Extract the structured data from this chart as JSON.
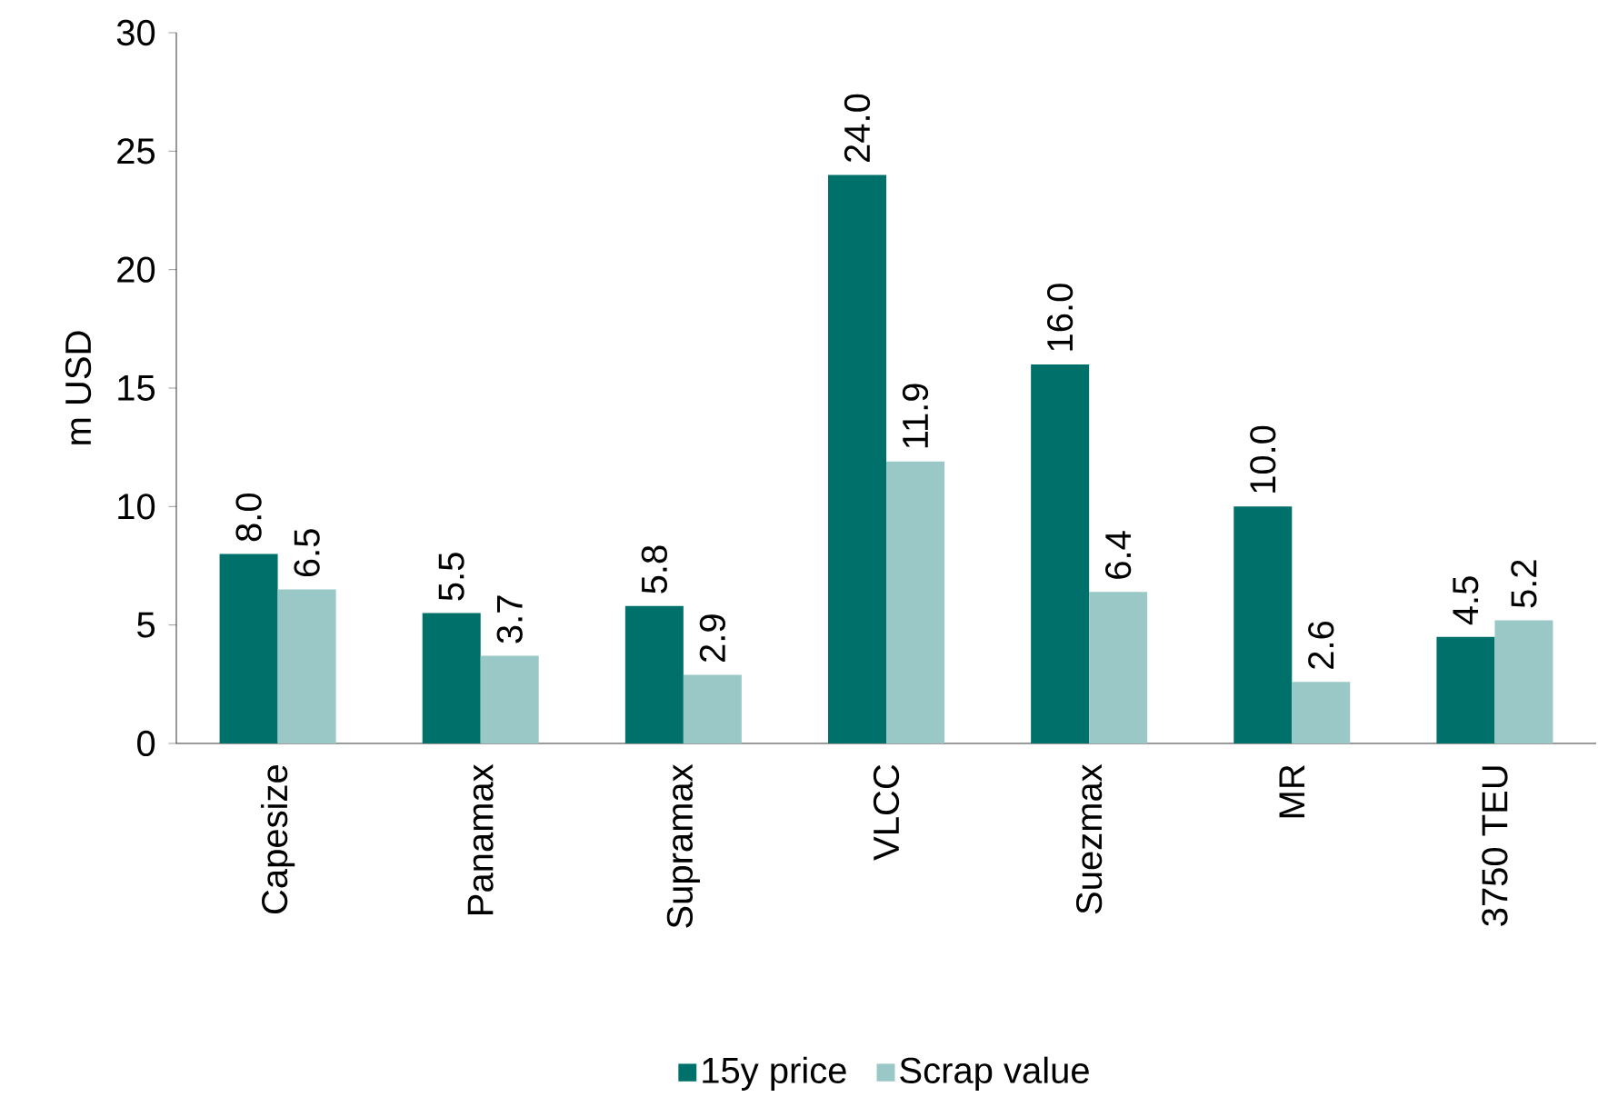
{
  "chart_data": {
    "type": "bar",
    "ylabel": "m USD",
    "categories": [
      "Capesize",
      "Panamax",
      "Supramax",
      "VLCC",
      "Suezmax",
      "MR",
      "3750 TEU"
    ],
    "series": [
      {
        "name": "15y price",
        "color": "#00706b",
        "values": [
          8.0,
          5.5,
          5.8,
          24.0,
          16.0,
          10.0,
          4.5
        ],
        "value_labels": [
          "8.0",
          "5.5",
          "5.8",
          "24.0",
          "16.0",
          "10.0",
          "4.5"
        ]
      },
      {
        "name": "Scrap value",
        "color": "#99c8c6",
        "values": [
          6.5,
          3.7,
          2.9,
          11.9,
          6.4,
          2.6,
          5.2
        ],
        "value_labels": [
          "6.5",
          "3.7",
          "2.9",
          "11.9",
          "6.4",
          "2.6",
          "5.2"
        ]
      }
    ],
    "ylim": [
      0,
      30
    ],
    "yticks": [
      0,
      5,
      10,
      15,
      20,
      25,
      30
    ],
    "legend": "bottom"
  }
}
